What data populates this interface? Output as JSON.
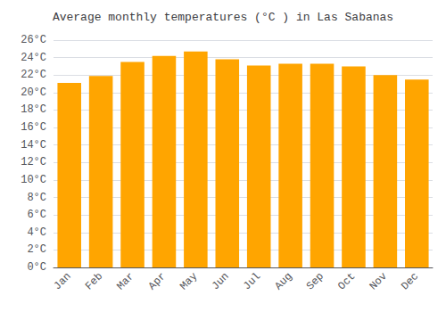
{
  "chart_data": {
    "type": "bar",
    "title": "Average monthly temperatures (°C ) in Las Sabanas",
    "categories": [
      "Jan",
      "Feb",
      "Mar",
      "Apr",
      "May",
      "Jun",
      "Jul",
      "Aug",
      "Sep",
      "Oct",
      "Nov",
      "Dec"
    ],
    "values": [
      21.1,
      21.9,
      23.5,
      24.2,
      24.7,
      23.8,
      23.1,
      23.3,
      23.3,
      23.0,
      22.0,
      21.5
    ],
    "color": "#FFA500",
    "ylim": [
      0,
      26
    ],
    "yticks": [
      {
        "value": 0,
        "label": "0°C"
      },
      {
        "value": 2,
        "label": "2°C"
      },
      {
        "value": 4,
        "label": "4°C"
      },
      {
        "value": 6,
        "label": "6°C"
      },
      {
        "value": 8,
        "label": "8°C"
      },
      {
        "value": 10,
        "label": "10°C"
      },
      {
        "value": 12,
        "label": "12°C"
      },
      {
        "value": 14,
        "label": "14°C"
      },
      {
        "value": 16,
        "label": "16°C"
      },
      {
        "value": 18,
        "label": "18°C"
      },
      {
        "value": 20,
        "label": "20°C"
      },
      {
        "value": 22,
        "label": "22°C"
      },
      {
        "value": 24,
        "label": "24°C"
      },
      {
        "value": 26,
        "label": "26°C"
      }
    ],
    "grid": true
  }
}
